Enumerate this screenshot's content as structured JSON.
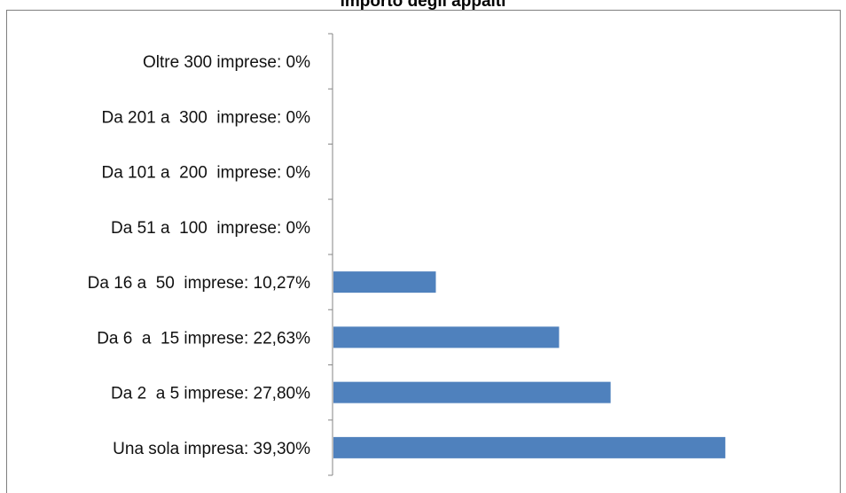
{
  "chart_data": {
    "type": "bar",
    "orientation": "horizontal",
    "title": "importo degli appalti",
    "categories": [
      "Una sola impresa: 39,30%",
      "Da 2  a 5 imprese: 27,80%",
      "Da 6  a  15 imprese: 22,63%",
      "Da 16 a  50  imprese: 10,27%",
      "Da 51 a  100  imprese: 0%",
      "Da 101 a  200  imprese: 0%",
      "Da 201 a  300  imprese: 0%",
      "Oltre 300 imprese: 0%"
    ],
    "values": [
      39.3,
      27.8,
      22.63,
      10.27,
      0,
      0,
      0,
      0
    ],
    "xlim": [
      0,
      45
    ],
    "grid": false,
    "legend": "none",
    "colors": {
      "bar": "#4f81bd",
      "axis": "#868686",
      "frame": "#7f7f7f"
    }
  }
}
